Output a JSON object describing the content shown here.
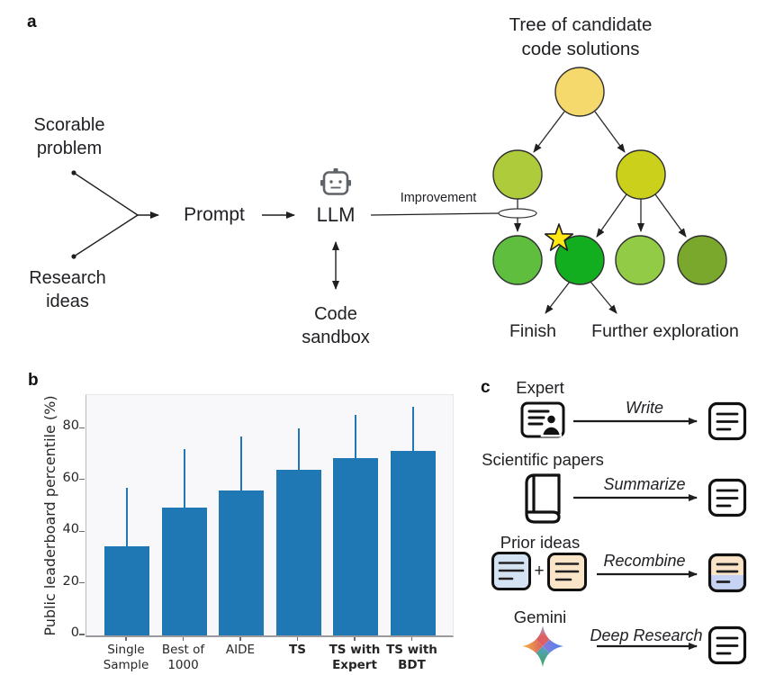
{
  "panel_a": {
    "label": "a",
    "scorable": "Scorable\nproblem",
    "research": "Research\nideas",
    "prompt": "Prompt",
    "llm": "LLM",
    "improvement": "Improvement",
    "code_sandbox": "Code\nsandbox",
    "tree_title": "Tree of candidate\ncode solutions",
    "finish": "Finish",
    "further_exploration": "Further exploration",
    "node_colors": {
      "root": "#F5D96C",
      "child_left": "#AECB3C",
      "child_right": "#CBD01A",
      "leaf_1": "#5FBE3E",
      "leaf_best": "#13AE20",
      "leaf_3": "#92CB45",
      "leaf_4": "#7AA82C"
    },
    "star_color": "#FFE813"
  },
  "panel_b": {
    "label": "b"
  },
  "chart_data": {
    "type": "bar",
    "title": "",
    "xlabel": "",
    "ylabel": "Public leaderboard percentile (%)",
    "categories": [
      "Single\nSample",
      "Best of\n1000",
      "AIDE",
      "TS",
      "TS with\nExpert",
      "TS with\nBDT"
    ],
    "bold_categories": [
      false,
      false,
      false,
      true,
      true,
      true
    ],
    "values": [
      34.5,
      49.5,
      56,
      64,
      68.5,
      71.5
    ],
    "error_upper": [
      57,
      72,
      77,
      80,
      85.5,
      88.5
    ],
    "yticks": [
      0,
      20,
      40,
      60,
      80
    ],
    "ylim": [
      0,
      93
    ],
    "bar_color": "#1f77b4",
    "grid": false,
    "legend": null
  },
  "panel_c": {
    "label": "c",
    "rows": [
      {
        "source": "Expert",
        "action": "Write"
      },
      {
        "source": "Scientific papers",
        "action": "Summarize"
      },
      {
        "source": "Prior ideas",
        "action": "Recombine",
        "plus": "+"
      },
      {
        "source": "Gemini",
        "action": "Deep Research"
      }
    ],
    "doc_colors": {
      "idea_blue": "#D4E3F4",
      "idea_orange": "#FAE5C9",
      "result_top": "#FAE5C9",
      "result_bottom": "#C7D3F2"
    }
  }
}
